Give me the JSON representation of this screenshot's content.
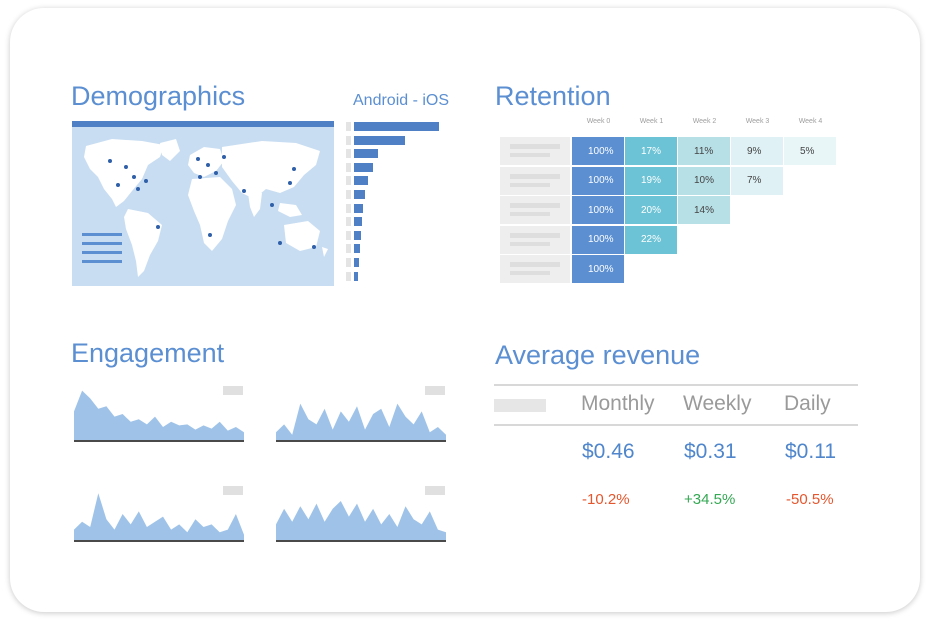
{
  "colors": {
    "accent": "#5b8fd2",
    "dark_blue": "#4f7fc4",
    "map_bg": "#c8ddf2",
    "negative": "#e4572e",
    "positive": "#34a853"
  },
  "demographics": {
    "title": "Demographics",
    "platform_label": "Android - iOS",
    "platform_bars": [
      1.0,
      0.6,
      0.28,
      0.22,
      0.16,
      0.13,
      0.11,
      0.09,
      0.08,
      0.07,
      0.06,
      0.05
    ]
  },
  "retention": {
    "title": "Retention",
    "weeks": [
      "Week 0",
      "Week 1",
      "Week 2",
      "Week 3",
      "Week 4"
    ],
    "rows": [
      [
        "100%",
        "17%",
        "11%",
        "9%",
        "5%"
      ],
      [
        "100%",
        "19%",
        "10%",
        "7%"
      ],
      [
        "100%",
        "20%",
        "14%"
      ],
      [
        "100%",
        "22%"
      ],
      [
        "100%"
      ]
    ]
  },
  "engagement": {
    "title": "Engagement",
    "charts": [
      [
        0.55,
        0.95,
        0.8,
        0.6,
        0.65,
        0.45,
        0.5,
        0.35,
        0.4,
        0.3,
        0.45,
        0.25,
        0.35,
        0.28,
        0.3,
        0.2,
        0.28,
        0.22,
        0.35,
        0.18,
        0.25,
        0.15
      ],
      [
        0.15,
        0.3,
        0.1,
        0.7,
        0.4,
        0.3,
        0.6,
        0.2,
        0.55,
        0.35,
        0.65,
        0.2,
        0.5,
        0.6,
        0.25,
        0.7,
        0.45,
        0.3,
        0.55,
        0.15,
        0.25,
        0.1
      ],
      [
        0.2,
        0.35,
        0.25,
        0.9,
        0.4,
        0.2,
        0.5,
        0.3,
        0.55,
        0.25,
        0.35,
        0.45,
        0.2,
        0.3,
        0.15,
        0.4,
        0.25,
        0.3,
        0.15,
        0.2,
        0.5,
        0.1
      ],
      [
        0.3,
        0.6,
        0.35,
        0.65,
        0.4,
        0.7,
        0.35,
        0.6,
        0.75,
        0.45,
        0.7,
        0.35,
        0.6,
        0.3,
        0.5,
        0.25,
        0.65,
        0.4,
        0.3,
        0.55,
        0.2,
        0.15
      ]
    ]
  },
  "revenue": {
    "title": "Average revenue",
    "columns": [
      {
        "label": "Monthly",
        "value": "$0.46",
        "change": "-10.2%",
        "trend": "negative"
      },
      {
        "label": "Weekly",
        "value": "$0.31",
        "change": "+34.5%",
        "trend": "positive"
      },
      {
        "label": "Daily",
        "value": "$0.11",
        "change": "-50.5%",
        "trend": "negative"
      }
    ]
  }
}
